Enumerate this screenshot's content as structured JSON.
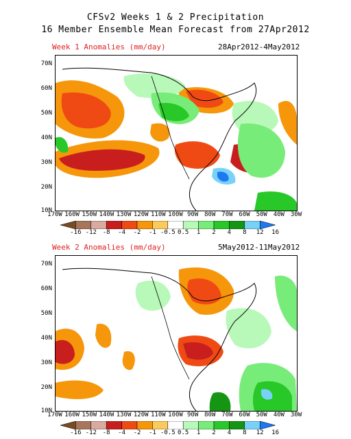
{
  "title_line1": "CFSv2 Weeks 1 & 2 Precipitation",
  "title_line2": "16 Member Ensemble Mean Forecast from 27Apr2012",
  "panels": [
    {
      "label": "Week 1 Anomalies (mm/day)",
      "dates": "28Apr2012-4May2012"
    },
    {
      "label": "Week 2 Anomalies (mm/day)",
      "dates": "5May2012-11May2012"
    }
  ],
  "lat_ticks": [
    "70N",
    "60N",
    "50N",
    "40N",
    "30N",
    "20N",
    "10N"
  ],
  "lon_ticks": [
    "170W",
    "160W",
    "150W",
    "140W",
    "130W",
    "120W",
    "110W",
    "100W",
    "90W",
    "80W",
    "70W",
    "60W",
    "50W",
    "40W",
    "30W"
  ],
  "colorbar": {
    "labels": [
      "-16",
      "-12",
      "-8",
      "-4",
      "-2",
      "-1",
      "-0.5",
      "0.5",
      "1",
      "2",
      "4",
      "8",
      "12",
      "16"
    ],
    "colors": [
      "#7a4a22",
      "#a8765a",
      "#d8aaa0",
      "#c81e1e",
      "#f04a14",
      "#f6960a",
      "#fcca5a",
      "#ffffff",
      "#b8f8b8",
      "#78ec78",
      "#28c828",
      "#149614",
      "#78d2f8",
      "#1e78f0"
    ]
  }
}
